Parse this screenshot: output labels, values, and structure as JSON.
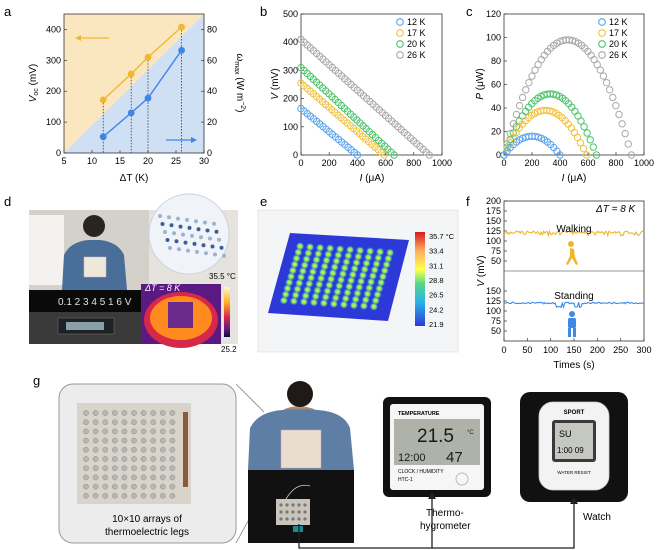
{
  "panel_labels": [
    "a",
    "b",
    "c",
    "d",
    "e",
    "f",
    "g"
  ],
  "colors": {
    "12K": "#5aa2ee",
    "17K": "#f2c13a",
    "20K": "#4cc36a",
    "26K": "#a8a8a8",
    "a_line1": "#f2b731",
    "a_line2": "#3d86e8",
    "heat_blue": "#2c39d8",
    "walk_line": "#f1b52c",
    "stand_line": "#3d8ae6"
  },
  "chart_data": [
    {
      "panel": "a",
      "type": "line",
      "xlabel": "ΔT (K)",
      "ylabel_left": "V_oc (mV)",
      "ylabel_right": "ω_max (W m⁻²)",
      "xlim": [
        5,
        30
      ],
      "ylim_left": [
        0,
        450
      ],
      "ylim_right": [
        0,
        90
      ],
      "xticks": [
        5,
        10,
        15,
        20,
        25,
        30
      ],
      "yticks_left": [
        0,
        100,
        200,
        300,
        400
      ],
      "yticks_right": [
        0,
        20,
        40,
        60,
        80
      ],
      "x": [
        12,
        17,
        20,
        26
      ],
      "series": [
        {
          "axis": "left",
          "values": [
            172,
            256,
            310,
            408
          ]
        },
        {
          "axis": "right",
          "values": [
            10.5,
            26,
            35.5,
            66.5
          ]
        }
      ]
    },
    {
      "panel": "b",
      "type": "scatter",
      "xlabel": "I (μA)",
      "ylabel": "V (mV)",
      "xlim": [
        0,
        1000
      ],
      "ylim": [
        0,
        500
      ],
      "xticks": [
        0,
        200,
        400,
        600,
        800,
        1000
      ],
      "yticks": [
        0,
        100,
        200,
        300,
        400,
        500
      ],
      "legend": "top-right",
      "series": [
        {
          "name": "12 K",
          "I_max": 400,
          "V_oc": 165
        },
        {
          "name": "17 K",
          "I_max": 590,
          "V_oc": 255
        },
        {
          "name": "20 K",
          "I_max": 660,
          "V_oc": 310
        },
        {
          "name": "26 K",
          "I_max": 910,
          "V_oc": 410
        }
      ]
    },
    {
      "panel": "c",
      "type": "scatter",
      "xlabel": "I (μA)",
      "ylabel": "P (μW)",
      "xlim": [
        0,
        1000
      ],
      "ylim": [
        0,
        120
      ],
      "xticks": [
        0,
        200,
        400,
        600,
        800,
        1000
      ],
      "yticks": [
        0,
        20,
        40,
        60,
        80,
        100,
        120
      ],
      "legend": "top-right",
      "series": [
        {
          "name": "12 K",
          "I_max": 400,
          "P_peak": 16
        },
        {
          "name": "17 K",
          "I_max": 590,
          "P_peak": 38
        },
        {
          "name": "20 K",
          "I_max": 660,
          "P_peak": 52
        },
        {
          "name": "26 K",
          "I_max": 910,
          "P_peak": 98
        }
      ]
    },
    {
      "panel": "e",
      "type": "heatmap",
      "colorbar_ticks": [
        "35.7 °C",
        "33.4",
        "31.1",
        "28.8",
        "26.5",
        "24.2",
        "21.9"
      ],
      "grid": [
        10,
        10
      ]
    },
    {
      "panel": "f",
      "type": "line",
      "annotation": "ΔT = 8 K",
      "xlabel": "Times (s)",
      "ylabel": "V (mV)",
      "xlim": [
        0,
        300
      ],
      "ylim": [
        25,
        200
      ],
      "xticks": [
        0,
        50,
        100,
        150,
        200,
        250,
        300
      ],
      "yticks": [
        50,
        75,
        100,
        125,
        150,
        175,
        200
      ],
      "series": [
        {
          "name": "Walking",
          "level": 122
        },
        {
          "name": "Standing",
          "level": 120
        }
      ]
    }
  ],
  "panel_d": {
    "temp_max": "35.5 °C",
    "temp_min": "25.2",
    "dT_label": "ΔT = 8 K",
    "meter_reading": "0.1 2 3 4 5 1 6   V"
  },
  "panel_g": {
    "caption": "10×10 arrays of thermoelectric legs",
    "thermo_label": "Thermo-hygrometer",
    "watch_label": "Watch",
    "thermo_head": "TEMPERATURE",
    "thermo_temp": "21.5",
    "thermo_unit": "°C",
    "thermo_time": "12:00",
    "thermo_hum": "47",
    "thermo_foot1": "CLOCK / HUMIDITY",
    "thermo_foot2": "HTC-1",
    "watch_brand": "SPORT",
    "watch_day": "SU",
    "watch_time": "1:00 09",
    "watch_resist": "WATER RESIST"
  }
}
